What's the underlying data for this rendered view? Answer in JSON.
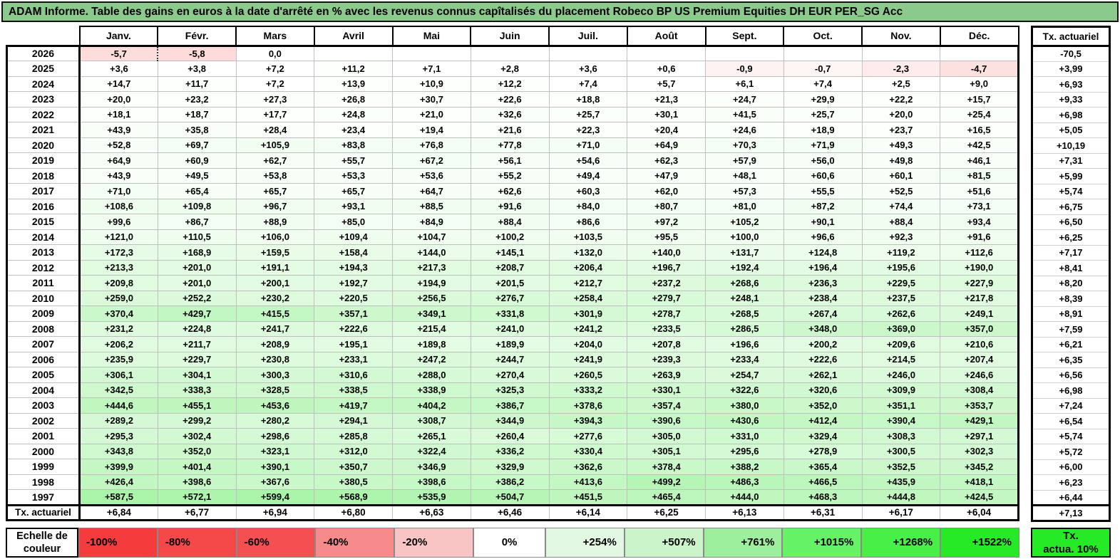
{
  "chart_data": {
    "type": "heatmap",
    "title": "ADAM Informe. Table des gains en euros à la date d'arrêté en % avec les revenus connus capîtalisés du placement Robeco BP US Premium Equities DH EUR PER_SG Acc",
    "columns": [
      "Janv.",
      "Févr.",
      "Mars",
      "Avril",
      "Mai",
      "Juin",
      "Juil.",
      "Août",
      "Sept.",
      "Oct.",
      "Nov.",
      "Déc."
    ],
    "tx_column_header": "Tx. actuariel",
    "dotted_divider": {
      "year": "2026",
      "col": 1
    },
    "rows": [
      {
        "year": "2026",
        "values": [
          "-5,7",
          "-5,8",
          "0,0",
          "",
          "",
          "",
          "",
          "",
          "",
          "",
          "",
          ""
        ],
        "tx": "-70,5"
      },
      {
        "year": "2025",
        "values": [
          "+3,6",
          "+3,8",
          "+7,2",
          "+11,2",
          "+7,1",
          "+2,8",
          "+3,6",
          "+0,6",
          "-0,9",
          "-0,7",
          "-2,3",
          "-4,7"
        ],
        "tx": "+3,99"
      },
      {
        "year": "2024",
        "values": [
          "+14,7",
          "+11,7",
          "+7,2",
          "+13,9",
          "+10,9",
          "+12,2",
          "+7,4",
          "+5,7",
          "+6,1",
          "+7,4",
          "+2,5",
          "+9,0"
        ],
        "tx": "+6,93"
      },
      {
        "year": "2023",
        "values": [
          "+20,0",
          "+23,2",
          "+27,3",
          "+26,8",
          "+30,7",
          "+22,6",
          "+18,8",
          "+21,3",
          "+24,7",
          "+29,9",
          "+22,2",
          "+15,7"
        ],
        "tx": "+9,33"
      },
      {
        "year": "2022",
        "values": [
          "+18,1",
          "+18,7",
          "+17,7",
          "+24,8",
          "+21,0",
          "+32,6",
          "+25,7",
          "+30,1",
          "+41,5",
          "+25,7",
          "+20,0",
          "+25,4"
        ],
        "tx": "+6,98"
      },
      {
        "year": "2021",
        "values": [
          "+43,9",
          "+35,8",
          "+28,4",
          "+23,4",
          "+19,4",
          "+21,6",
          "+22,3",
          "+20,4",
          "+24,6",
          "+18,9",
          "+23,7",
          "+16,5"
        ],
        "tx": "+5,05"
      },
      {
        "year": "2020",
        "values": [
          "+52,8",
          "+69,7",
          "+105,9",
          "+83,8",
          "+76,8",
          "+77,8",
          "+71,0",
          "+64,9",
          "+70,3",
          "+71,9",
          "+49,3",
          "+42,5"
        ],
        "tx": "+10,19"
      },
      {
        "year": "2019",
        "values": [
          "+64,9",
          "+60,9",
          "+62,7",
          "+55,7",
          "+67,2",
          "+56,1",
          "+54,6",
          "+62,3",
          "+57,9",
          "+56,0",
          "+49,8",
          "+46,1"
        ],
        "tx": "+7,31"
      },
      {
        "year": "2018",
        "values": [
          "+43,9",
          "+49,5",
          "+53,8",
          "+53,3",
          "+53,6",
          "+55,2",
          "+49,4",
          "+47,9",
          "+48,1",
          "+60,6",
          "+60,1",
          "+81,5"
        ],
        "tx": "+5,99"
      },
      {
        "year": "2017",
        "values": [
          "+71,0",
          "+65,4",
          "+65,7",
          "+65,7",
          "+64,7",
          "+62,6",
          "+60,3",
          "+62,0",
          "+57,3",
          "+55,5",
          "+52,5",
          "+51,6"
        ],
        "tx": "+5,74"
      },
      {
        "year": "2016",
        "values": [
          "+108,6",
          "+109,8",
          "+96,7",
          "+93,1",
          "+88,5",
          "+91,6",
          "+84,0",
          "+80,7",
          "+81,0",
          "+87,2",
          "+74,4",
          "+73,1"
        ],
        "tx": "+6,75"
      },
      {
        "year": "2015",
        "values": [
          "+99,6",
          "+86,7",
          "+88,9",
          "+85,0",
          "+84,9",
          "+88,4",
          "+86,6",
          "+97,2",
          "+105,2",
          "+90,1",
          "+88,4",
          "+93,4"
        ],
        "tx": "+6,50"
      },
      {
        "year": "2014",
        "values": [
          "+121,0",
          "+110,5",
          "+106,0",
          "+109,4",
          "+104,7",
          "+100,2",
          "+103,5",
          "+95,5",
          "+100,0",
          "+96,6",
          "+92,3",
          "+91,6"
        ],
        "tx": "+6,25"
      },
      {
        "year": "2013",
        "values": [
          "+172,3",
          "+168,9",
          "+159,5",
          "+158,4",
          "+144,0",
          "+145,1",
          "+132,0",
          "+140,0",
          "+131,7",
          "+124,8",
          "+119,2",
          "+112,6"
        ],
        "tx": "+7,17"
      },
      {
        "year": "2012",
        "values": [
          "+213,3",
          "+201,0",
          "+191,1",
          "+194,3",
          "+217,3",
          "+208,7",
          "+206,4",
          "+196,7",
          "+192,4",
          "+196,4",
          "+195,6",
          "+190,0"
        ],
        "tx": "+8,41"
      },
      {
        "year": "2011",
        "values": [
          "+209,8",
          "+201,0",
          "+200,1",
          "+192,7",
          "+194,9",
          "+201,5",
          "+212,7",
          "+237,2",
          "+268,6",
          "+236,3",
          "+229,5",
          "+227,9"
        ],
        "tx": "+8,20"
      },
      {
        "year": "2010",
        "values": [
          "+259,0",
          "+252,2",
          "+230,2",
          "+220,5",
          "+256,5",
          "+276,7",
          "+258,4",
          "+279,7",
          "+248,1",
          "+238,4",
          "+237,5",
          "+217,8"
        ],
        "tx": "+8,39"
      },
      {
        "year": "2009",
        "values": [
          "+370,4",
          "+429,7",
          "+415,5",
          "+357,1",
          "+349,1",
          "+331,8",
          "+301,9",
          "+278,7",
          "+268,5",
          "+267,4",
          "+262,6",
          "+249,1"
        ],
        "tx": "+8,91"
      },
      {
        "year": "2008",
        "values": [
          "+231,2",
          "+224,8",
          "+241,7",
          "+222,6",
          "+215,4",
          "+241,0",
          "+241,2",
          "+233,5",
          "+286,5",
          "+348,0",
          "+369,0",
          "+357,0"
        ],
        "tx": "+7,59"
      },
      {
        "year": "2007",
        "values": [
          "+206,2",
          "+211,7",
          "+208,9",
          "+195,1",
          "+189,8",
          "+189,9",
          "+204,0",
          "+207,8",
          "+196,6",
          "+200,2",
          "+209,6",
          "+210,6"
        ],
        "tx": "+6,21"
      },
      {
        "year": "2006",
        "values": [
          "+235,9",
          "+229,7",
          "+230,8",
          "+233,1",
          "+247,2",
          "+244,7",
          "+241,9",
          "+239,3",
          "+233,4",
          "+222,6",
          "+214,5",
          "+207,4"
        ],
        "tx": "+6,35"
      },
      {
        "year": "2005",
        "values": [
          "+306,1",
          "+304,1",
          "+300,3",
          "+310,6",
          "+288,0",
          "+270,4",
          "+260,5",
          "+263,9",
          "+254,7",
          "+262,1",
          "+246,0",
          "+246,6"
        ],
        "tx": "+6,56"
      },
      {
        "year": "2004",
        "values": [
          "+342,5",
          "+338,3",
          "+328,5",
          "+338,5",
          "+338,9",
          "+325,3",
          "+333,2",
          "+330,1",
          "+322,6",
          "+320,6",
          "+309,9",
          "+308,4"
        ],
        "tx": "+6,98"
      },
      {
        "year": "2003",
        "values": [
          "+444,6",
          "+455,1",
          "+453,6",
          "+419,7",
          "+404,2",
          "+386,7",
          "+378,6",
          "+357,4",
          "+380,0",
          "+352,0",
          "+351,1",
          "+353,7"
        ],
        "tx": "+7,24"
      },
      {
        "year": "2002",
        "values": [
          "+289,2",
          "+299,2",
          "+280,2",
          "+294,1",
          "+308,7",
          "+344,9",
          "+394,3",
          "+390,6",
          "+430,6",
          "+412,4",
          "+390,4",
          "+429,1"
        ],
        "tx": "+6,54"
      },
      {
        "year": "2001",
        "values": [
          "+295,3",
          "+302,4",
          "+298,6",
          "+285,8",
          "+265,1",
          "+260,4",
          "+277,6",
          "+305,0",
          "+331,0",
          "+329,4",
          "+308,3",
          "+297,1"
        ],
        "tx": "+5,74"
      },
      {
        "year": "2000",
        "values": [
          "+343,8",
          "+352,0",
          "+323,1",
          "+312,0",
          "+322,4",
          "+336,2",
          "+330,4",
          "+305,1",
          "+295,6",
          "+278,9",
          "+300,5",
          "+302,3"
        ],
        "tx": "+5,72"
      },
      {
        "year": "1999",
        "values": [
          "+399,9",
          "+401,4",
          "+390,1",
          "+350,7",
          "+346,9",
          "+329,9",
          "+362,6",
          "+378,4",
          "+388,2",
          "+365,4",
          "+352,5",
          "+345,2"
        ],
        "tx": "+6,00"
      },
      {
        "year": "1998",
        "values": [
          "+426,4",
          "+398,6",
          "+367,6",
          "+380,5",
          "+398,6",
          "+386,2",
          "+413,6",
          "+499,2",
          "+486,3",
          "+466,5",
          "+435,9",
          "+418,1"
        ],
        "tx": "+6,23"
      },
      {
        "year": "1997",
        "values": [
          "+587,5",
          "+572,1",
          "+599,4",
          "+568,9",
          "+535,9",
          "+504,7",
          "+451,5",
          "+465,4",
          "+444,0",
          "+468,3",
          "+444,8",
          "+424,5"
        ],
        "tx": "+6,44"
      }
    ],
    "footer": {
      "label": "Tx. actuariel",
      "values": [
        "+6,84",
        "+6,77",
        "+6,94",
        "+6,80",
        "+6,63",
        "+6,46",
        "+6,14",
        "+6,25",
        "+6,13",
        "+6,31",
        "+6,17",
        "+6,04"
      ],
      "tx": "+7,13"
    },
    "color_scale": {
      "domain": [
        -100,
        1522
      ],
      "negative_color": "#F23B3B",
      "zero_color": "#FFFFFF",
      "positive_color": "#24E224",
      "title_bg": "#8CC98C"
    },
    "legend": {
      "label": "Echelle de couleur",
      "stops": [
        {
          "label": "-100%",
          "color": "#F53C3C"
        },
        {
          "label": "-80%",
          "color": "#F54848"
        },
        {
          "label": "-60%",
          "color": "#F55050"
        },
        {
          "label": "-40%",
          "color": "#F78A8A"
        },
        {
          "label": "-20%",
          "color": "#F9C4C4"
        },
        {
          "label": "0%",
          "color": "#FFFFFF"
        },
        {
          "label": "+254%",
          "color": "#E3F8E3"
        },
        {
          "label": "+507%",
          "color": "#CBF4CB"
        },
        {
          "label": "+761%",
          "color": "#9DEF9D"
        },
        {
          "label": "+1015%",
          "color": "#66F266"
        },
        {
          "label": "+1268%",
          "color": "#47EF47"
        },
        {
          "label": "+1522%",
          "color": "#27EA27"
        }
      ],
      "tx_box_label": "Tx.\nactua. 10%",
      "tx_box_color": "#27EA27"
    }
  }
}
